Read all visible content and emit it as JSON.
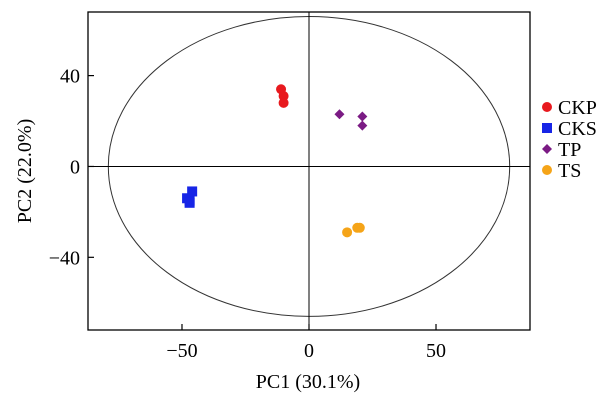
{
  "chart_data": {
    "type": "scatter",
    "title": "",
    "xlabel": "PC1 (30.1%)",
    "ylabel": "PC2 (22.0%)",
    "xlim": [
      -87,
      87
    ],
    "ylim": [
      -72,
      68
    ],
    "xticks": [
      -50,
      0,
      50
    ],
    "yticks": [
      40,
      0,
      -40
    ],
    "xtick_labels": [
      "−50",
      "0",
      "50"
    ],
    "ytick_labels": [
      "40",
      "0",
      "−40"
    ],
    "grid": false,
    "zero_lines": true,
    "confidence_ellipse": {
      "cx": 0,
      "cy": 0,
      "rx": 79,
      "ry": 66
    },
    "legend_position": "right",
    "series": [
      {
        "name": "CKP",
        "marker": "circle",
        "color": "#e8191e",
        "points": [
          [
            -11,
            34
          ],
          [
            -10,
            31
          ],
          [
            -10,
            28
          ]
        ]
      },
      {
        "name": "CKS",
        "marker": "square",
        "color": "#1725e6",
        "points": [
          [
            -47,
            -15
          ],
          [
            -48,
            -14
          ],
          [
            -46,
            -11
          ],
          [
            -47,
            -16
          ]
        ]
      },
      {
        "name": "TP",
        "marker": "diamond",
        "color": "#7b1b84",
        "points": [
          [
            12,
            23
          ],
          [
            21,
            22
          ],
          [
            21,
            18
          ]
        ]
      },
      {
        "name": "TS",
        "marker": "circle",
        "color": "#f5a418",
        "points": [
          [
            15,
            -29
          ],
          [
            19,
            -27
          ],
          [
            20,
            -27
          ]
        ]
      }
    ]
  }
}
